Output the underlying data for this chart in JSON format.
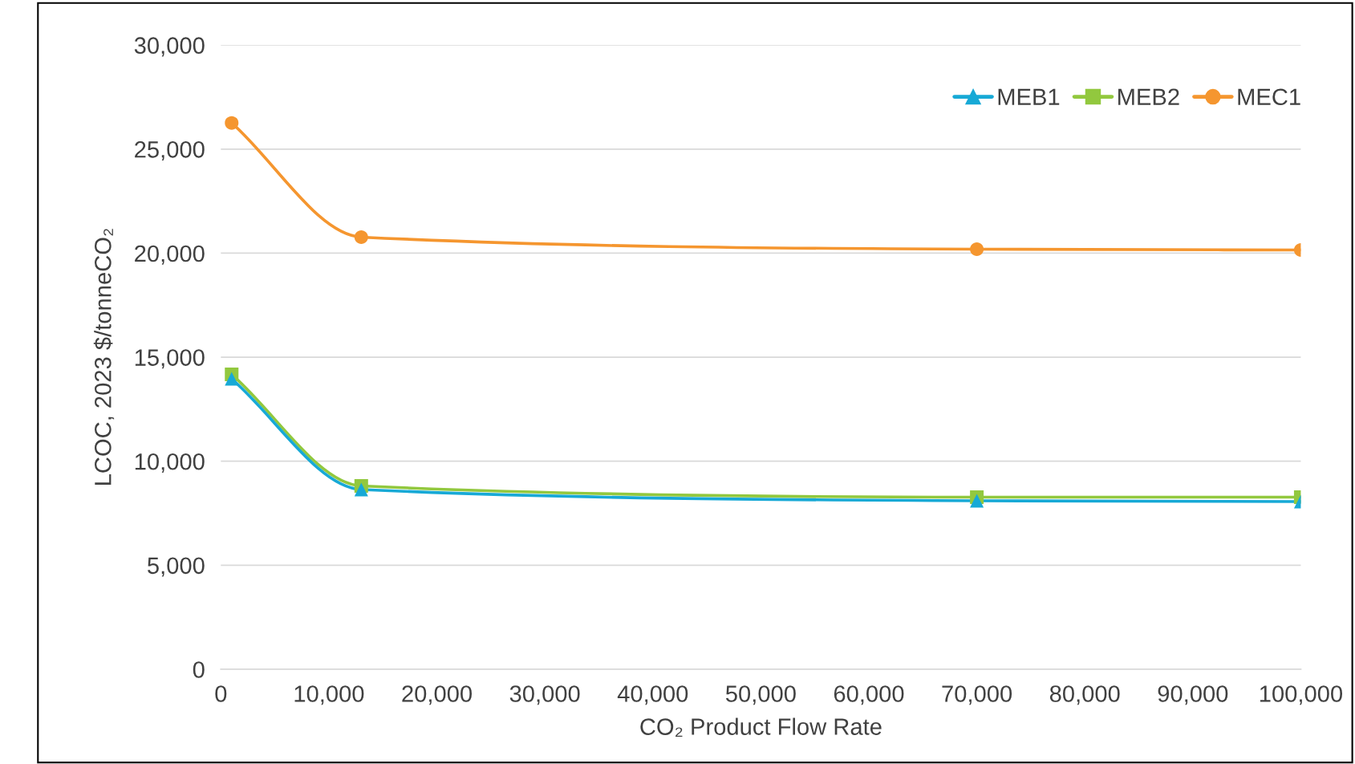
{
  "chart_data": {
    "type": "line",
    "xlabel": "CO₂ Product Flow Rate",
    "ylabel": "LCOC, 2023 $/tonneCO₂",
    "x": [
      1000,
      13000,
      70000,
      100000
    ],
    "series": [
      {
        "name": "MEB1",
        "color": "#17a9d6",
        "marker": "triangle",
        "values": [
          13960,
          8640,
          8100,
          8060
        ]
      },
      {
        "name": "MEB2",
        "color": "#92c83e",
        "marker": "square",
        "values": [
          14170,
          8810,
          8270,
          8270
        ]
      },
      {
        "name": "MEC1",
        "color": "#f5962f",
        "marker": "circle",
        "values": [
          26260,
          20770,
          20190,
          20150
        ]
      }
    ],
    "xlim": [
      0,
      100000
    ],
    "xticks": [
      {
        "value": 0,
        "label": "0"
      },
      {
        "value": 10000,
        "label": "10,000"
      },
      {
        "value": 20000,
        "label": "20,000"
      },
      {
        "value": 30000,
        "label": "30,000"
      },
      {
        "value": 40000,
        "label": "40,000"
      },
      {
        "value": 50000,
        "label": "50,000"
      },
      {
        "value": 60000,
        "label": "60,000"
      },
      {
        "value": 70000,
        "label": "70,000"
      },
      {
        "value": 80000,
        "label": "80,000"
      },
      {
        "value": 90000,
        "label": "90,000"
      },
      {
        "value": 100000,
        "label": "100,000"
      }
    ],
    "ylim": [
      0,
      30000
    ],
    "yticks": [
      {
        "value": 0,
        "label": "0"
      },
      {
        "value": 5000,
        "label": "5,000"
      },
      {
        "value": 10000,
        "label": "10,000"
      },
      {
        "value": 15000,
        "label": "15,000"
      },
      {
        "value": 20000,
        "label": "20,000"
      },
      {
        "value": 25000,
        "label": "25,000"
      },
      {
        "value": 30000,
        "label": "30,000"
      }
    ],
    "grid": "y",
    "legend": "top right",
    "line_style": "solid"
  }
}
